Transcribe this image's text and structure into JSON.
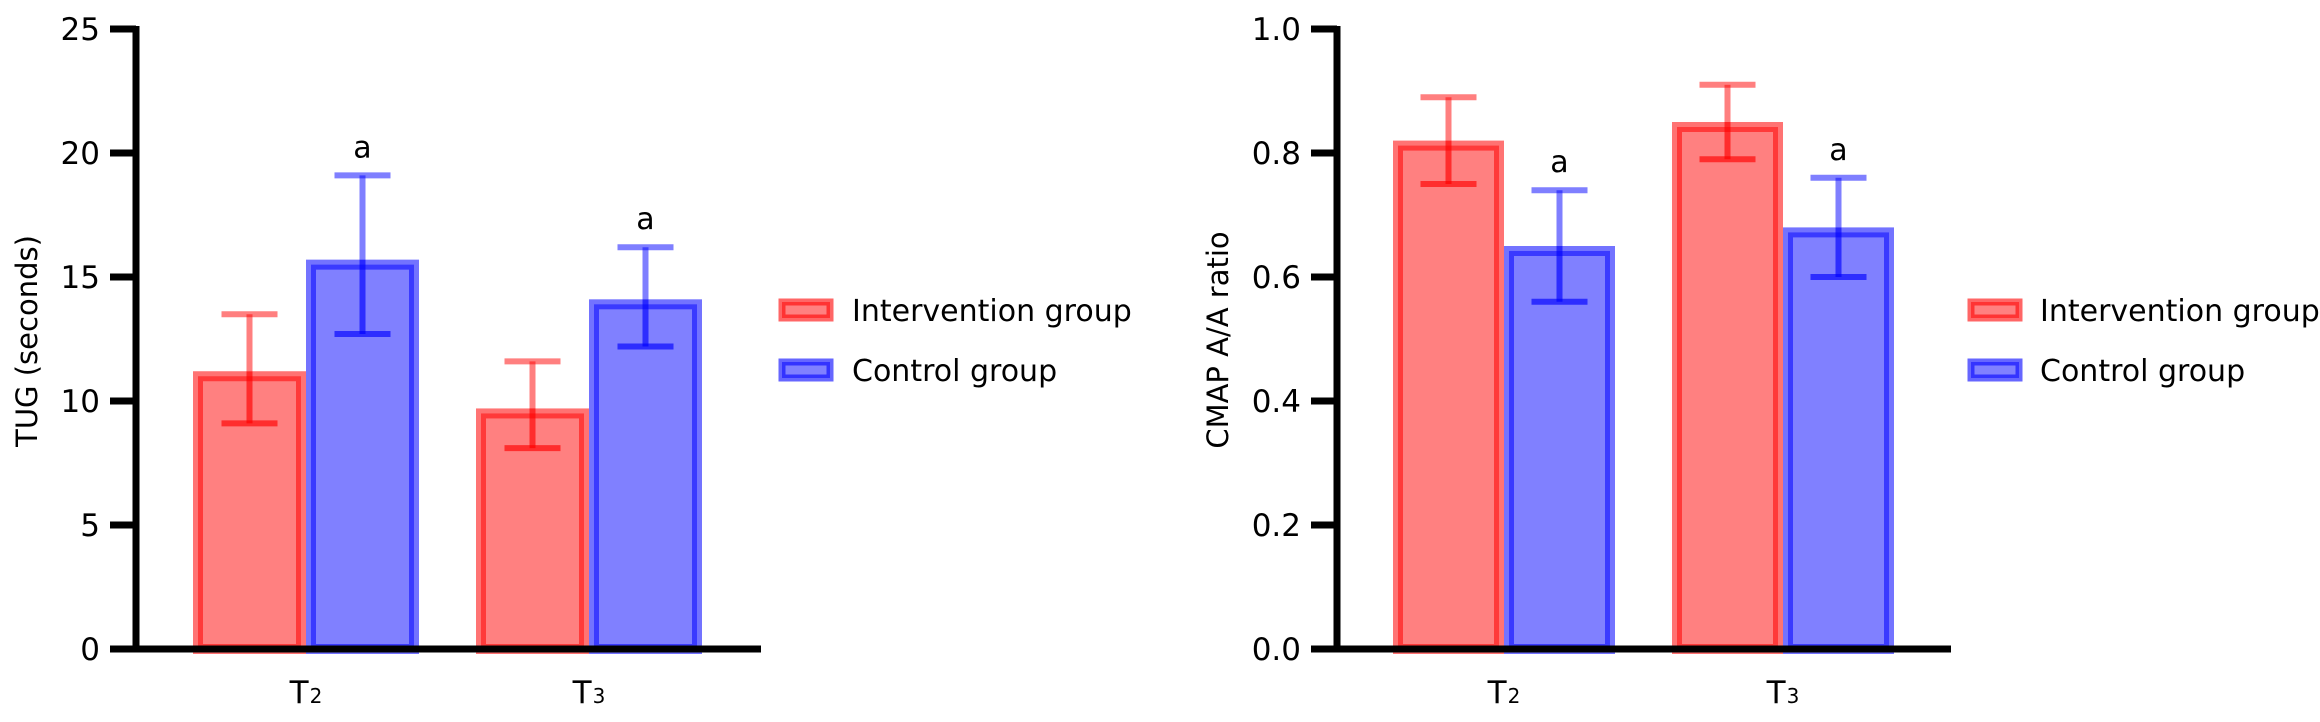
{
  "figure": {
    "legend_placement": "right",
    "series_colors": {
      "Intervention group": "#ff0000",
      "Control group": "#0000ff"
    },
    "fill_opacity_note": "semi-transparent fill with darker outline"
  },
  "chart_data": [
    {
      "type": "bar",
      "title": "",
      "xlabel": "",
      "ylabel": "TUG (seconds)",
      "ylim": [
        0,
        25
      ],
      "yticks": [
        0,
        5,
        10,
        15,
        20,
        25
      ],
      "ytick_labels": [
        "0",
        "5",
        "10",
        "15",
        "20",
        "25"
      ],
      "grid": false,
      "categories": [
        {
          "base": "T",
          "sub": "2"
        },
        {
          "base": "T",
          "sub": "3"
        }
      ],
      "legend": [
        "Intervention group",
        "Control group"
      ],
      "legend_placement": "right",
      "series": [
        {
          "name": "Intervention group",
          "color": "#ff0000",
          "values": [
            11.2,
            9.7
          ],
          "error_low": [
            9.1,
            8.1
          ],
          "error_high": [
            13.5,
            11.6
          ],
          "annotations": [
            "",
            ""
          ]
        },
        {
          "name": "Control group",
          "color": "#0000ff",
          "values": [
            15.7,
            14.1
          ],
          "error_low": [
            12.7,
            12.2
          ],
          "error_high": [
            19.1,
            16.2
          ],
          "annotations": [
            "a",
            "a"
          ]
        }
      ]
    },
    {
      "type": "bar",
      "title": "",
      "xlabel": "",
      "ylabel": "CMAP A/A ratio",
      "ylim": [
        0,
        1.0
      ],
      "yticks": [
        0,
        0.2,
        0.4,
        0.6,
        0.8,
        1.0
      ],
      "ytick_labels": [
        "0.0",
        "0.2",
        "0.4",
        "0.6",
        "0.8",
        "1.0"
      ],
      "grid": false,
      "categories": [
        {
          "base": "T",
          "sub": "2"
        },
        {
          "base": "T",
          "sub": "3"
        }
      ],
      "legend": [
        "Intervention group",
        "Control group"
      ],
      "legend_placement": "right",
      "series": [
        {
          "name": "Intervention group",
          "color": "#ff0000",
          "values": [
            0.82,
            0.85
          ],
          "error_low": [
            0.75,
            0.79
          ],
          "error_high": [
            0.89,
            0.91
          ],
          "annotations": [
            "",
            ""
          ]
        },
        {
          "name": "Control group",
          "color": "#0000ff",
          "values": [
            0.65,
            0.68
          ],
          "error_low": [
            0.56,
            0.6
          ],
          "error_high": [
            0.74,
            0.76
          ],
          "annotations": [
            "a",
            "a"
          ]
        }
      ]
    }
  ]
}
